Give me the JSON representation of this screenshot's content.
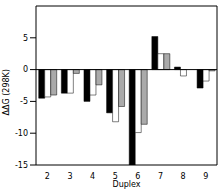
{
  "chart_data": {
    "type": "bar",
    "x_label": "Duplex",
    "y_label": "ΔΔG (298K)",
    "categories": [
      "2",
      "3",
      "4",
      "5",
      "6",
      "7",
      "8",
      "9"
    ],
    "series": [
      {
        "color": "#000000",
        "values": [
          -4.5,
          -3.7,
          -5.0,
          -6.8,
          -15,
          5.2,
          0.4,
          -2.9
        ]
      },
      {
        "color": "#ffffff",
        "values": [
          -4.3,
          -3.7,
          -4.0,
          -8.2,
          -9.9,
          2.5,
          -1.0,
          -1.8
        ]
      },
      {
        "color": "#aaaaaa",
        "values": [
          -4.0,
          -0.6,
          -2.4,
          -5.8,
          -8.6,
          2.5,
          0,
          -0.2
        ]
      }
    ],
    "ylim": [
      -15,
      10
    ],
    "yticks": [
      -15,
      -10,
      -5,
      0,
      5
    ],
    "grid": false
  }
}
